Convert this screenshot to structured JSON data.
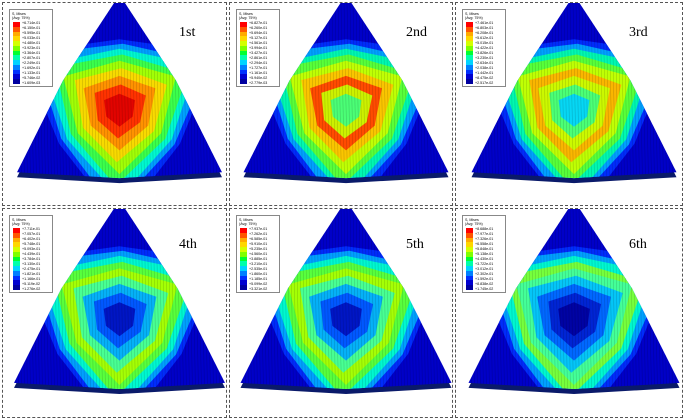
{
  "legend_header": "S, Mises\n(Avg: 75%)",
  "colormap": [
    "#ff0000",
    "#ff5500",
    "#ffaa00",
    "#ffd700",
    "#d4ff00",
    "#7fff00",
    "#00ff30",
    "#00ffaa",
    "#00d4ff",
    "#0080ff",
    "#0030ff",
    "#0000d0",
    "#0000a0"
  ],
  "panels": [
    {
      "mode_label": "1st",
      "legend_values": [
        "+6.714e-01",
        "+6.150e-01",
        "+5.595e-01",
        "+5.033e-01",
        "+4.480e-01",
        "+3.923e-01",
        "+3.364e-01",
        "+2.807e-01",
        "+2.249e-01",
        "+1.692e-01",
        "+1.133e-01",
        "+5.746e-02",
        "+1.609e-03"
      ],
      "hot_level": 0.95,
      "pattern": "center-hot"
    },
    {
      "mode_label": "2nd",
      "legend_values": [
        "+6.827e-01",
        "+6.260e-01",
        "+5.694e-01",
        "+5.127e-01",
        "+4.561e-01",
        "+3.994e-01",
        "+3.427e-01",
        "+2.861e-01",
        "+2.294e-01",
        "+1.727e-01",
        "+1.161e-01",
        "+5.940e-02",
        "+2.779e-03"
      ],
      "hot_level": 0.85,
      "pattern": "ring-hot"
    },
    {
      "mode_label": "3rd",
      "legend_values": [
        "+7.461e-01",
        "+6.803e-01",
        "+6.208e-01",
        "+5.612e-01",
        "+5.015e-01",
        "+4.422e-01",
        "+3.826e-01",
        "+3.230e-01",
        "+2.634e-01",
        "+2.038e-01",
        "+1.442e-01",
        "+8.475e-02",
        "+2.517e-02"
      ],
      "hot_level": 0.75,
      "pattern": "ring-warm"
    },
    {
      "mode_label": "4th",
      "legend_values": [
        "+7.711e-01",
        "+7.057e-01",
        "+6.402e-01",
        "+5.748e-01",
        "+5.093e-01",
        "+4.439e-01",
        "+3.784e-01",
        "+3.130e-01",
        "+2.475e-01",
        "+1.821e-01",
        "+1.166e-01",
        "+5.119e-02",
        "+1.276e-02"
      ],
      "hot_level": 0.45,
      "pattern": "cool-center"
    },
    {
      "mode_label": "5th",
      "legend_values": [
        "+7.937e-01",
        "+7.262e-01",
        "+6.585e-01",
        "+5.910e-01",
        "+5.235e-01",
        "+4.560e-01",
        "+3.885e-01",
        "+3.210e-01",
        "+2.535e-01",
        "+1.860e-01",
        "+1.185e-01",
        "+5.099e-02",
        "+3.321e-02"
      ],
      "hot_level": 0.45,
      "pattern": "cool-center"
    },
    {
      "mode_label": "6th",
      "legend_values": [
        "+8.688e-01",
        "+7.977e-01",
        "+7.326e-01",
        "+6.558e-01",
        "+5.848e-01",
        "+5.138e-01",
        "+4.430e-01",
        "+3.722e-01",
        "+3.012e-01",
        "+2.302e-01",
        "+1.592e-01",
        "+8.838e-02",
        "+1.745e-02"
      ],
      "hot_level": 0.35,
      "pattern": "blue-center"
    }
  ]
}
